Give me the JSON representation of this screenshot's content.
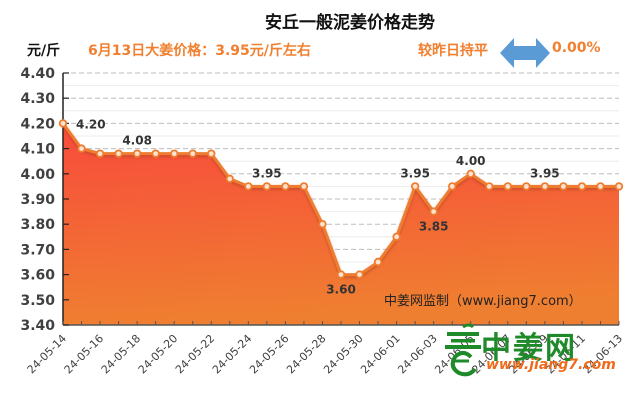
{
  "header": {
    "title": "安丘一般泥姜价格走势",
    "unit": "元/斤",
    "price_note": "6月13日大姜价格：3.95元/斤左右",
    "change_label": "较昨日持平",
    "change_icon": "left-right-arrow-icon",
    "change_value": "0.00%"
  },
  "colors": {
    "accent": "#f08030",
    "line": "#ee7d31",
    "fill_top": "#f84a3c",
    "fill_bottom": "#ef7f30",
    "arrow": "#5b9bd5",
    "logo_green": "#1f8a2a",
    "logo_orange": "#f06a1a"
  },
  "watermark": "中姜网监制（www.jiang7.com）",
  "logo": {
    "name": "中姜网",
    "url": "www.jiang7.com"
  },
  "chart_data": {
    "type": "area",
    "title": "安丘一般泥姜价格走势",
    "xlabel": "",
    "ylabel": "元/斤",
    "ylim": [
      3.4,
      4.4
    ],
    "yticks": [
      "4.40",
      "4.30",
      "4.20",
      "4.10",
      "4.00",
      "3.90",
      "3.80",
      "3.70",
      "3.60",
      "3.50",
      "3.40"
    ],
    "grid": true,
    "legend": "none",
    "x": [
      "24-05-14",
      "24-05-15",
      "24-05-16",
      "24-05-17",
      "24-05-18",
      "24-05-19",
      "24-05-20",
      "24-05-21",
      "24-05-22",
      "24-05-23",
      "24-05-24",
      "24-05-25",
      "24-05-26",
      "24-05-27",
      "24-05-28",
      "24-05-29",
      "24-05-30",
      "24-05-31",
      "24-06-01",
      "24-06-02",
      "24-06-03",
      "24-06-04",
      "24-06-05",
      "24-06-06",
      "24-06-07",
      "24-06-08",
      "24-06-09",
      "24-06-10",
      "24-06-11",
      "24-06-12",
      "24-06-13"
    ],
    "xtick_labels": [
      "24-05-14",
      "24-05-16",
      "24-05-18",
      "24-05-20",
      "24-05-22",
      "24-05-24",
      "24-05-26",
      "24-05-28",
      "24-05-30",
      "24-06-01",
      "24-06-03",
      "24-06-05",
      "24-06-07",
      "24-06-09",
      "24-06-11",
      "24-06-13"
    ],
    "series": [
      {
        "name": "安丘一般泥姜",
        "values": [
          4.2,
          4.1,
          4.08,
          4.08,
          4.08,
          4.08,
          4.08,
          4.08,
          4.08,
          3.98,
          3.95,
          3.95,
          3.95,
          3.95,
          3.8,
          3.6,
          3.6,
          3.65,
          3.75,
          3.95,
          3.85,
          3.95,
          4.0,
          3.95,
          3.95,
          3.95,
          3.95,
          3.95,
          3.95,
          3.95,
          3.95
        ]
      }
    ],
    "annotations": [
      {
        "index": 0,
        "text": "4.20",
        "pos": "right"
      },
      {
        "index": 4,
        "text": "4.08",
        "pos": "above"
      },
      {
        "index": 11,
        "text": "3.95",
        "pos": "above"
      },
      {
        "index": 15,
        "text": "3.60",
        "pos": "below"
      },
      {
        "index": 19,
        "text": "3.95",
        "pos": "above"
      },
      {
        "index": 20,
        "text": "3.85",
        "pos": "below"
      },
      {
        "index": 22,
        "text": "4.00",
        "pos": "above"
      },
      {
        "index": 26,
        "text": "3.95",
        "pos": "above"
      }
    ]
  }
}
